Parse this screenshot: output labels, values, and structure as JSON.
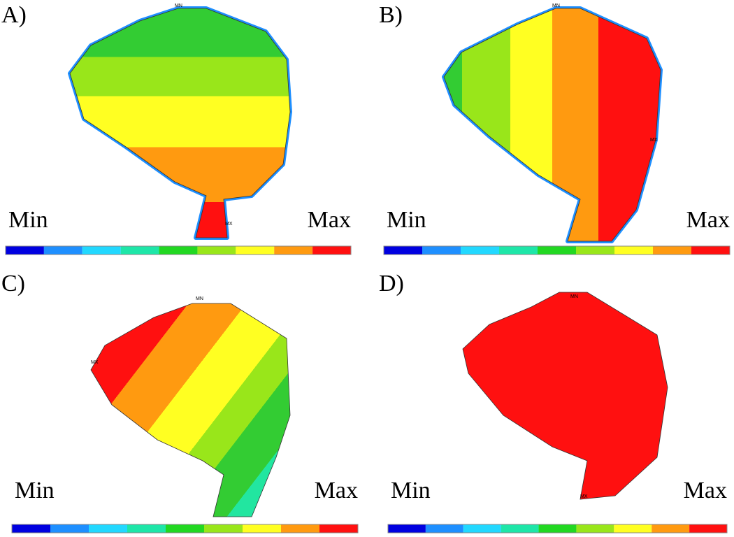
{
  "panels": [
    {
      "label": "A)",
      "min_label": "Min",
      "max_label": "Max",
      "markers": [
        "MN",
        "MX"
      ]
    },
    {
      "label": "B)",
      "min_label": "Min",
      "max_label": "Max",
      "markers": [
        "MN",
        "MX"
      ]
    },
    {
      "label": "C)",
      "min_label": "Min",
      "max_label": "Max",
      "markers": [
        "MN",
        "MX"
      ]
    },
    {
      "label": "D)",
      "min_label": "Min",
      "max_label": "Max",
      "markers": [
        "MN",
        "MX"
      ]
    }
  ]
}
